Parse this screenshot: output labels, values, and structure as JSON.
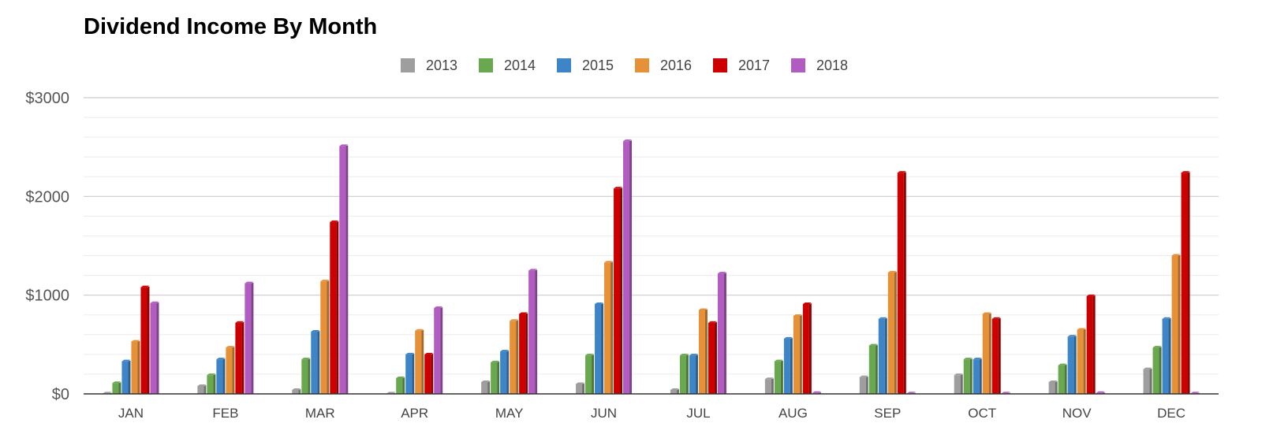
{
  "chart_data": {
    "type": "bar",
    "title": "Dividend Income By Month",
    "xlabel": "",
    "ylabel": "",
    "ylim": [
      0,
      3000
    ],
    "yticks": [
      {
        "value": 0,
        "label": "$0"
      },
      {
        "value": 1000,
        "label": "$1000"
      },
      {
        "value": 2000,
        "label": "$2000"
      },
      {
        "value": 3000,
        "label": "$3000"
      }
    ],
    "minor_grid_step": 200,
    "grid": true,
    "legend_position": "top-center",
    "categories": [
      "JAN",
      "FEB",
      "MAR",
      "APR",
      "MAY",
      "JUN",
      "JUL",
      "AUG",
      "SEP",
      "OCT",
      "NOV",
      "DEC"
    ],
    "series": [
      {
        "name": "2013",
        "color": "#9e9e9e",
        "values": [
          5,
          80,
          40,
          5,
          120,
          100,
          40,
          150,
          170,
          190,
          120,
          250
        ]
      },
      {
        "name": "2014",
        "color": "#6aa84f",
        "values": [
          110,
          190,
          350,
          160,
          320,
          390,
          390,
          330,
          490,
          350,
          290,
          470
        ]
      },
      {
        "name": "2015",
        "color": "#3d85c6",
        "values": [
          330,
          350,
          630,
          400,
          430,
          910,
          390,
          560,
          760,
          350,
          580,
          760
        ]
      },
      {
        "name": "2016",
        "color": "#e69138",
        "values": [
          530,
          470,
          1140,
          640,
          740,
          1330,
          850,
          790,
          1230,
          810,
          650,
          1400
        ]
      },
      {
        "name": "2017",
        "color": "#cc0000",
        "values": [
          1080,
          720,
          1740,
          400,
          810,
          2080,
          720,
          910,
          2240,
          760,
          990,
          2240
        ]
      },
      {
        "name": "2018",
        "color": "#b05cc0",
        "values": [
          920,
          1120,
          2510,
          870,
          1250,
          2560,
          1220,
          10,
          5,
          5,
          10,
          5
        ]
      }
    ]
  }
}
